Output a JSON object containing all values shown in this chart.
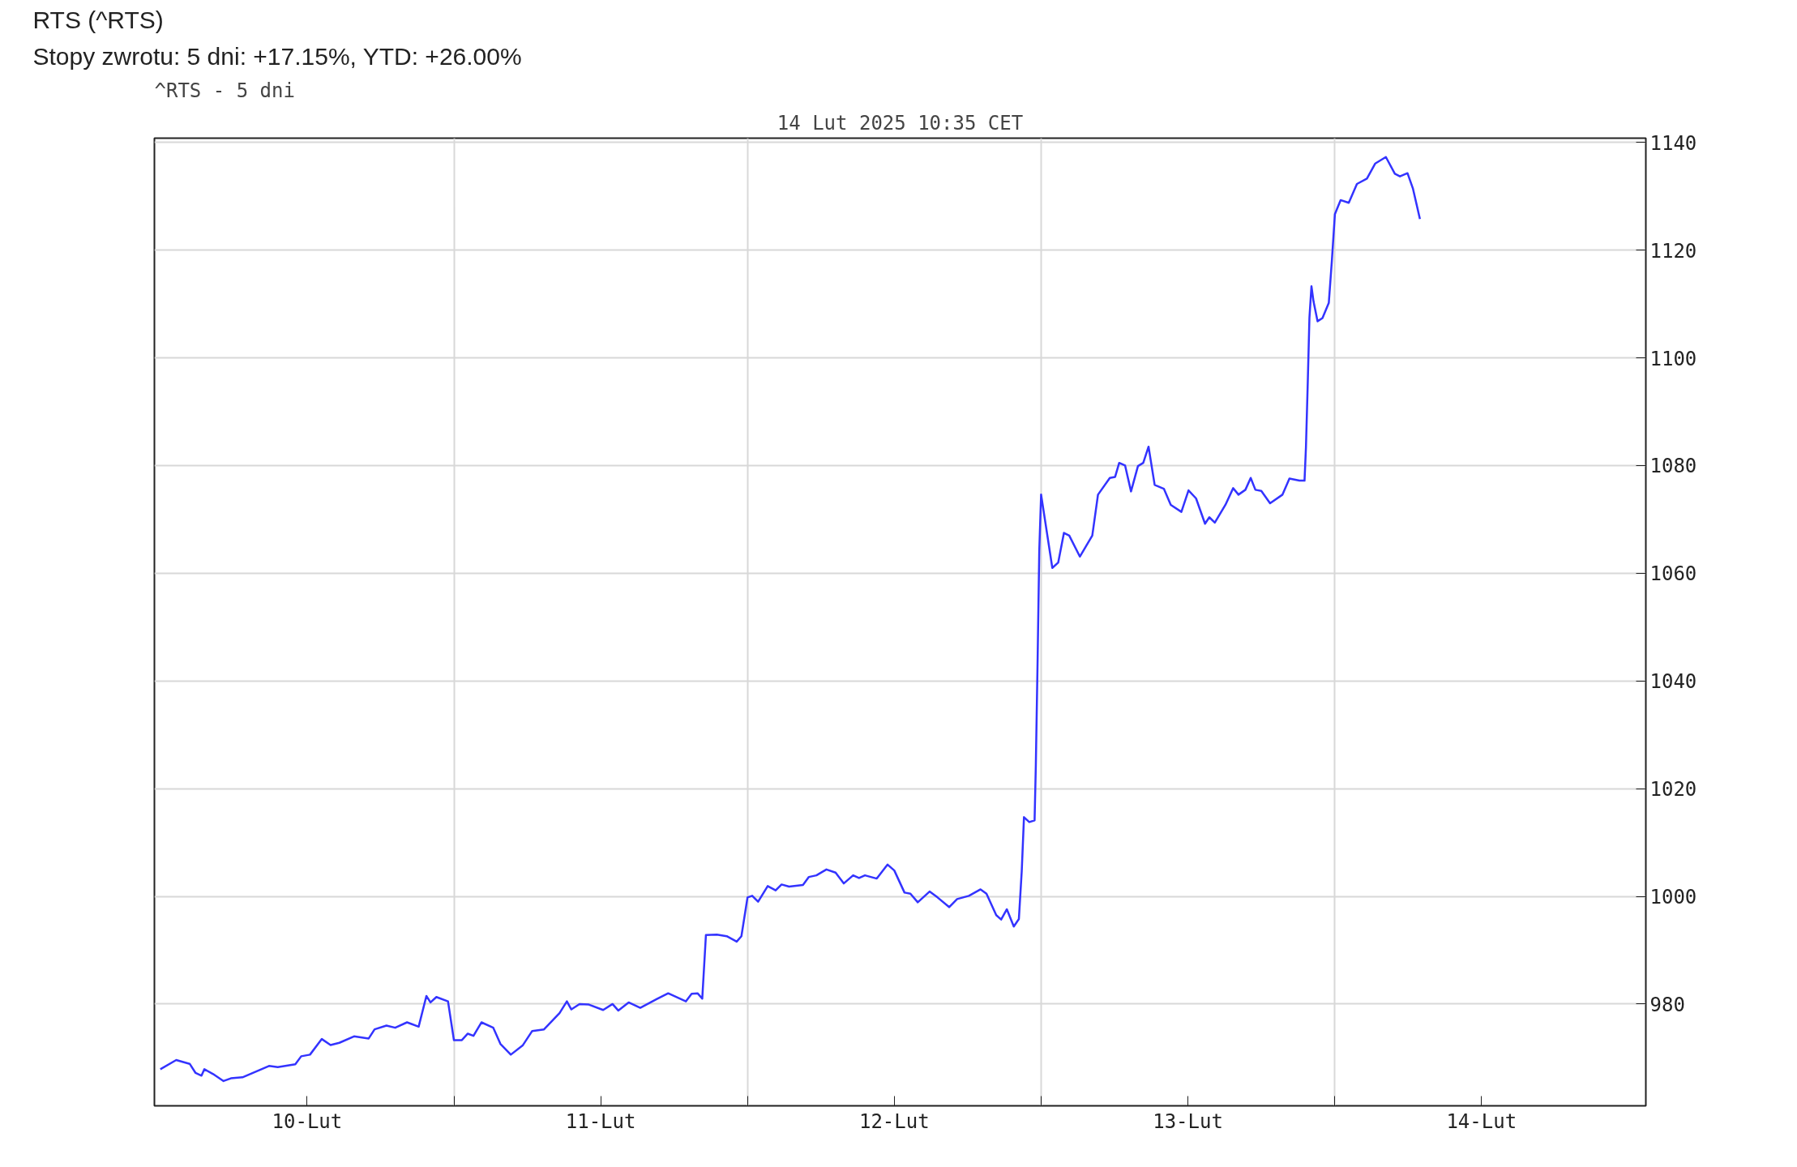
{
  "chart_data": {
    "type": "line",
    "title": "^RTS - 5 dni",
    "subtitle": "14 Lut 2025 10:35 CET",
    "annotations": [
      "RTS (^RTS)",
      "Stopy zwrotu: 5 dni: +17.15%, YTD: +26.00%"
    ],
    "xlim": [
      "2025-02-09T23:31",
      "2025-02-15T01:26"
    ],
    "xticks": [
      {
        "value": "2025-02-10T12:00",
        "label": "10-Lut"
      },
      {
        "value": "2025-02-11",
        "label": null
      },
      {
        "value": "2025-02-11T12:00",
        "label": "11-Lut"
      },
      {
        "value": "2025-02-12",
        "label": null
      },
      {
        "value": "2025-02-12T12:00",
        "label": "12-Lut"
      },
      {
        "value": "2025-02-13",
        "label": null
      },
      {
        "value": "2025-02-13T12:00",
        "label": "13-Lut"
      },
      {
        "value": "2025-02-14",
        "label": null
      },
      {
        "value": "2025-02-14T12:00",
        "label": "14-Lut"
      }
    ],
    "ylim": [
      961.1,
      1140.8
    ],
    "yticks": [
      980,
      1000,
      1020,
      1040,
      1060,
      1080,
      1100,
      1120,
      1140
    ],
    "grid": true,
    "line_style": "solid",
    "series": [
      {
        "color": "#3333ff",
        "x": [
          "2025-02-10T00:00",
          "2025-02-10T01:18",
          "2025-02-10T02:24",
          "2025-02-10T02:53",
          "2025-02-10T03:22",
          "2025-02-10T03:36",
          "2025-02-10T04:19",
          "2025-02-10T05:10",
          "2025-02-10T05:46",
          "2025-02-10T06:43",
          "2025-02-10T08:53",
          "2025-02-10T09:36",
          "2025-02-10T11:02",
          "2025-02-10T11:31",
          "2025-02-10T12:14",
          "2025-02-10T13:12",
          "2025-02-10T13:55",
          "2025-02-10T14:38",
          "2025-02-10T15:50",
          "2025-02-10T17:02",
          "2025-02-10T17:31",
          "2025-02-10T18:29",
          "2025-02-10T19:12",
          "2025-02-10T20:10",
          "2025-02-10T21:07",
          "2025-02-10T21:45",
          "2025-02-10T22:05",
          "2025-02-10T22:34",
          "2025-02-10T23:31",
          "2025-02-11T00:00",
          "2025-02-11T00:39",
          "2025-02-11T01:08",
          "2025-02-11T01:36",
          "2025-02-11T02:15",
          "2025-02-11T03:13",
          "2025-02-11T03:48",
          "2025-02-11T04:39",
          "2025-02-11T05:37",
          "2025-02-11T06:24",
          "2025-02-11T07:22",
          "2025-02-11T08:38",
          "2025-02-11T09:14",
          "2025-02-11T09:36",
          "2025-02-11T10:16",
          "2025-02-11T11:02",
          "2025-02-11T12:12",
          "2025-02-11T12:58",
          "2025-02-11T13:26",
          "2025-02-11T14:17",
          "2025-02-11T15:14",
          "2025-02-11T16:34",
          "2025-02-11T17:31",
          "2025-02-11T18:58",
          "2025-02-11T19:26",
          "2025-02-11T19:55",
          "2025-02-11T20:18",
          "2025-02-11T20:36",
          "2025-02-11T21:30",
          "2025-02-11T22:18",
          "2025-02-11T23:07",
          "2025-02-11T23:30",
          "2025-02-12T00:00",
          "2025-02-12T00:23",
          "2025-02-12T00:52",
          "2025-02-12T01:39",
          "2025-02-12T02:18",
          "2025-02-12T02:47",
          "2025-02-12T03:24",
          "2025-02-12T04:32",
          "2025-02-12T05:01",
          "2025-02-12T05:38",
          "2025-02-12T06:27",
          "2025-02-12T07:12",
          "2025-02-12T07:52",
          "2025-02-12T08:38",
          "2025-02-12T09:07",
          "2025-02-12T09:36",
          "2025-02-12T10:34",
          "2025-02-12T11:27",
          "2025-02-12T12:00",
          "2025-02-12T12:50",
          "2025-02-12T13:19",
          "2025-02-12T13:55",
          "2025-02-12T14:53",
          "2025-02-12T15:32",
          "2025-02-12T16:29",
          "2025-02-12T17:08",
          "2025-02-12T18:06",
          "2025-02-12T19:03",
          "2025-02-12T19:32",
          "2025-02-12T20:20",
          "2025-02-12T20:44",
          "2025-02-12T21:12",
          "2025-02-12T21:46",
          "2025-02-12T22:11",
          "2025-02-12T22:25",
          "2025-02-12T22:36",
          "2025-02-12T23:02",
          "2025-02-12T23:28",
          "2025-02-12T23:34",
          "2025-02-12T23:43",
          "2025-02-12T23:51",
          "2025-02-13T00:00",
          "2025-02-13T00:55",
          "2025-02-13T01:24",
          "2025-02-13T01:52",
          "2025-02-13T02:18",
          "2025-02-13T03:10",
          "2025-02-13T04:11",
          "2025-02-13T04:39",
          "2025-02-13T05:37",
          "2025-02-13T06:03",
          "2025-02-13T06:23",
          "2025-02-13T06:52",
          "2025-02-13T07:21",
          "2025-02-13T07:55",
          "2025-02-13T08:21",
          "2025-02-13T08:47",
          "2025-02-13T09:17",
          "2025-02-13T10:02",
          "2025-02-13T10:36",
          "2025-02-13T11:28",
          "2025-02-13T12:03",
          "2025-02-13T12:40",
          "2025-02-13T13:24",
          "2025-02-13T13:45",
          "2025-02-13T14:12",
          "2025-02-13T15:04",
          "2025-02-13T15:42",
          "2025-02-13T16:08",
          "2025-02-13T16:42",
          "2025-02-13T17:08",
          "2025-02-13T17:31",
          "2025-02-13T18:00",
          "2025-02-13T18:43",
          "2025-02-13T19:44",
          "2025-02-13T20:18",
          "2025-02-13T21:07",
          "2025-02-13T21:32",
          "2025-02-13T21:39",
          "2025-02-13T21:48",
          "2025-02-13T21:56",
          "2025-02-13T22:06",
          "2025-02-13T22:16",
          "2025-02-13T22:36",
          "2025-02-13T23:00",
          "2025-02-13T23:31",
          "2025-02-13T23:46",
          "2025-02-14T00:01",
          "2025-02-14T00:29",
          "2025-02-14T01:09",
          "2025-02-14T01:49",
          "2025-02-14T02:38",
          "2025-02-14T03:19",
          "2025-02-14T04:11",
          "2025-02-14T04:55",
          "2025-02-14T05:20",
          "2025-02-14T05:57",
          "2025-02-14T06:24",
          "2025-02-14T06:58"
        ],
        "values": [
          967.9,
          969.6,
          968.9,
          967.2,
          966.7,
          967.9,
          967.0,
          965.7,
          966.2,
          966.4,
          968.5,
          968.3,
          968.8,
          970.3,
          970.6,
          973.5,
          972.4,
          972.8,
          974.0,
          973.6,
          975.3,
          976.0,
          975.6,
          976.6,
          975.8,
          981.5,
          980.3,
          981.3,
          980.5,
          973.3,
          973.3,
          974.5,
          974.1,
          976.6,
          975.6,
          972.6,
          970.6,
          972.3,
          975.0,
          975.3,
          978.3,
          980.5,
          979.0,
          980.0,
          979.9,
          978.9,
          980.0,
          978.8,
          980.3,
          979.3,
          980.9,
          982.0,
          980.5,
          981.9,
          982.0,
          981.0,
          992.8,
          992.9,
          992.6,
          991.6,
          992.6,
          999.8,
          1000.1,
          999.0,
          1001.9,
          1001.1,
          1002.2,
          1001.8,
          1002.1,
          1003.6,
          1003.9,
          1005.0,
          1004.4,
          1002.4,
          1003.9,
          1003.4,
          1003.9,
          1003.3,
          1005.9,
          1004.8,
          1000.7,
          1000.5,
          998.9,
          1000.9,
          999.8,
          998.0,
          999.5,
          1000.1,
          1001.3,
          1000.5,
          996.5,
          995.7,
          997.6,
          994.4,
          995.8,
          1004.7,
          1014.7,
          1013.8,
          1014.1,
          1024.1,
          1044.2,
          1064.2,
          1074.6,
          1061.0,
          1062.0,
          1067.5,
          1067.0,
          1063.1,
          1067.0,
          1074.6,
          1077.7,
          1077.9,
          1080.5,
          1080.0,
          1075.2,
          1079.9,
          1080.5,
          1083.5,
          1076.4,
          1075.7,
          1072.7,
          1071.4,
          1075.4,
          1073.9,
          1069.2,
          1070.4,
          1069.4,
          1072.7,
          1075.8,
          1074.6,
          1075.5,
          1077.7,
          1075.5,
          1075.3,
          1073.0,
          1074.6,
          1077.6,
          1077.2,
          1077.2,
          1083.4,
          1095.6,
          1107.4,
          1113.3,
          1110.5,
          1106.8,
          1107.4,
          1110.2,
          1118.0,
          1126.7,
          1129.3,
          1128.8,
          1132.3,
          1133.3,
          1136.1,
          1137.3,
          1134.2,
          1133.7,
          1134.3,
          1131.4,
          1125.8
        ]
      }
    ]
  }
}
